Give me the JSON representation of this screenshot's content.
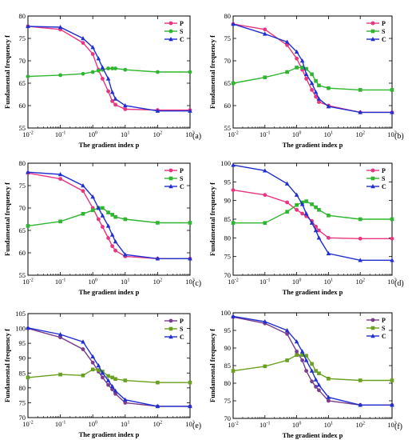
{
  "x_axis_label": "The gradient index p",
  "y_axis_label": "Fundamental frequency f",
  "chart_data": [
    {
      "type": "line",
      "panel_label": "(a)",
      "xscale": "log",
      "xlim": [
        0.01,
        1000
      ],
      "ylim": [
        55,
        80
      ],
      "yticks": [
        55,
        60,
        65,
        70,
        75,
        80
      ],
      "xlabel": "The gradient index p",
      "ylabel": "Fundamental frequency f",
      "legend_position": "top-right",
      "series": [
        {
          "name": "P",
          "color": "#e8357f",
          "marker": "circle",
          "x": [
            0.01,
            0.1,
            0.5,
            1,
            1.5,
            2,
            3,
            4,
            5,
            10,
            100,
            1000
          ],
          "y": [
            77.7,
            77.0,
            74.0,
            71.5,
            68.0,
            66.0,
            63.2,
            61.0,
            60.2,
            59.2,
            59.0,
            59.0
          ]
        },
        {
          "name": "S",
          "color": "#2fb52f",
          "marker": "circle",
          "x": [
            0.01,
            0.1,
            0.5,
            1,
            1.5,
            2,
            3,
            4,
            5,
            10,
            100,
            1000
          ],
          "y": [
            66.5,
            66.8,
            67.1,
            67.5,
            67.8,
            68.0,
            68.3,
            68.3,
            68.3,
            68.0,
            67.5,
            67.5
          ]
        },
        {
          "name": "C",
          "color": "#1f2fd0",
          "marker": "triangle",
          "x": [
            0.01,
            0.1,
            0.5,
            1,
            1.5,
            2,
            3,
            4,
            5,
            10,
            100,
            1000
          ],
          "y": [
            77.7,
            77.5,
            75.0,
            73.0,
            70.5,
            68.5,
            66.0,
            63.0,
            61.5,
            60.0,
            58.8,
            58.8
          ]
        }
      ]
    },
    {
      "type": "line",
      "panel_label": "(b)",
      "xscale": "log",
      "xlim": [
        0.01,
        1000
      ],
      "ylim": [
        55,
        80
      ],
      "yticks": [
        55,
        60,
        65,
        70,
        75,
        80
      ],
      "xlabel": "The gradient index p",
      "ylabel": "Fundamental frequency f",
      "legend_position": "top-right",
      "series": [
        {
          "name": "P",
          "color": "#e8357f",
          "marker": "circle",
          "x": [
            0.01,
            0.1,
            0.5,
            1,
            1.5,
            2,
            3,
            4,
            5,
            10,
            100,
            1000
          ],
          "y": [
            78.2,
            77.0,
            73.5,
            70.5,
            68.0,
            66.0,
            63.5,
            62.0,
            60.8,
            60.0,
            58.5,
            58.5
          ]
        },
        {
          "name": "S",
          "color": "#2fb52f",
          "marker": "square",
          "x": [
            0.01,
            0.1,
            0.5,
            1,
            1.5,
            2,
            3,
            4,
            5,
            10,
            100,
            1000
          ],
          "y": [
            65.0,
            66.3,
            67.5,
            68.5,
            68.5,
            68.2,
            67.0,
            65.5,
            64.5,
            63.9,
            63.5,
            63.5
          ]
        },
        {
          "name": "C",
          "color": "#1f2fd0",
          "marker": "triangle",
          "x": [
            0.01,
            0.1,
            0.5,
            1,
            1.5,
            2,
            3,
            4,
            5,
            10,
            100,
            1000
          ],
          "y": [
            78.2,
            76.0,
            74.2,
            72.0,
            70.0,
            67.0,
            65.0,
            63.0,
            61.5,
            59.8,
            58.5,
            58.5
          ]
        }
      ]
    },
    {
      "type": "line",
      "panel_label": "(c)",
      "xscale": "log",
      "xlim": [
        0.01,
        1000
      ],
      "ylim": [
        55,
        80
      ],
      "yticks": [
        55,
        60,
        65,
        70,
        75,
        80
      ],
      "xlabel": "The gradient index p",
      "ylabel": "Fundamental frequency f",
      "legend_position": "top-right",
      "series": [
        {
          "name": "P",
          "color": "#e8357f",
          "marker": "circle",
          "x": [
            0.01,
            0.1,
            0.5,
            1,
            1.5,
            2,
            3,
            4,
            5,
            10,
            100,
            1000
          ],
          "y": [
            77.8,
            76.5,
            73.8,
            70.0,
            67.5,
            65.8,
            63.3,
            61.5,
            60.5,
            59.2,
            58.7,
            58.7
          ]
        },
        {
          "name": "S",
          "color": "#2fb52f",
          "marker": "square",
          "x": [
            0.01,
            0.1,
            0.5,
            1,
            1.5,
            2,
            3,
            4,
            5,
            10,
            100,
            1000
          ],
          "y": [
            66.0,
            67.0,
            68.7,
            69.5,
            70.0,
            70.0,
            69.0,
            68.5,
            68.0,
            67.5,
            66.7,
            66.7
          ]
        },
        {
          "name": "C",
          "color": "#1f2fd0",
          "marker": "triangle",
          "x": [
            0.01,
            0.1,
            0.5,
            1,
            1.5,
            2,
            3,
            4,
            5,
            10,
            100,
            1000
          ],
          "y": [
            78.0,
            77.5,
            75.0,
            72.5,
            70.0,
            68.3,
            66.0,
            64.0,
            62.5,
            59.6,
            58.7,
            58.7
          ]
        }
      ]
    },
    {
      "type": "line",
      "panel_label": "(d)",
      "xscale": "log",
      "xlim": [
        0.01,
        1000
      ],
      "ylim": [
        70,
        100
      ],
      "yticks": [
        70,
        75,
        80,
        85,
        90,
        95,
        100
      ],
      "xlabel": "The gradient index p",
      "ylabel": "Fundamental frequency f",
      "legend_position": "top-right",
      "series": [
        {
          "name": "P",
          "color": "#e8357f",
          "marker": "circle",
          "x": [
            0.01,
            0.1,
            0.5,
            1,
            1.5,
            2,
            3,
            4,
            5,
            10,
            100,
            1000
          ],
          "y": [
            92.8,
            91.5,
            89.5,
            87.5,
            86.5,
            85.8,
            84.5,
            83.0,
            82.0,
            80.0,
            79.8,
            79.8
          ]
        },
        {
          "name": "S",
          "color": "#2fb52f",
          "marker": "square",
          "x": [
            0.01,
            0.1,
            0.5,
            1,
            1.5,
            2,
            3,
            4,
            5,
            10,
            100,
            1000
          ],
          "y": [
            84.0,
            84.0,
            87.0,
            88.8,
            89.5,
            89.8,
            89.0,
            88.2,
            87.5,
            86.0,
            85.0,
            85.0
          ]
        },
        {
          "name": "C",
          "color": "#1f2fd0",
          "marker": "triangle",
          "x": [
            0.01,
            0.1,
            0.5,
            1,
            1.5,
            2,
            3,
            4,
            5,
            10,
            100,
            1000
          ],
          "y": [
            99.5,
            98.0,
            94.5,
            91.5,
            89.0,
            86.5,
            84.0,
            82.0,
            80.0,
            75.8,
            74.0,
            74.0
          ]
        }
      ]
    },
    {
      "type": "line",
      "panel_label": "(e)",
      "xscale": "log",
      "xlim": [
        0.01,
        1000
      ],
      "ylim": [
        70,
        105
      ],
      "yticks": [
        70,
        75,
        80,
        85,
        90,
        95,
        100,
        105
      ],
      "xlabel": "The gradient index p",
      "ylabel": "Fundamental frequency f",
      "legend_position": "top-right",
      "series": [
        {
          "name": "P",
          "color": "#7b3c8e",
          "marker": "circle",
          "x": [
            0.01,
            0.1,
            0.5,
            1,
            1.5,
            2,
            3,
            4,
            5,
            10,
            100,
            1000
          ],
          "y": [
            100.0,
            97.0,
            93.0,
            88.5,
            85.5,
            83.5,
            81.0,
            79.5,
            78.0,
            75.0,
            73.8,
            73.8
          ]
        },
        {
          "name": "S",
          "color": "#6aa021",
          "marker": "square",
          "x": [
            0.01,
            0.1,
            0.5,
            1,
            1.5,
            2,
            3,
            4,
            5,
            10,
            100,
            1000
          ],
          "y": [
            83.5,
            84.5,
            84.2,
            86.2,
            86.0,
            85.5,
            84.0,
            83.5,
            83.0,
            82.5,
            81.8,
            81.8
          ]
        },
        {
          "name": "C",
          "color": "#1f2fd0",
          "marker": "triangle",
          "x": [
            0.01,
            0.1,
            0.5,
            1,
            1.5,
            2,
            3,
            4,
            5,
            10,
            100,
            1000
          ],
          "y": [
            100.2,
            98.0,
            95.5,
            90.5,
            87.5,
            85.0,
            82.5,
            80.5,
            79.0,
            76.0,
            73.8,
            73.8
          ]
        }
      ]
    },
    {
      "type": "line",
      "panel_label": "(f)",
      "xscale": "log",
      "xlim": [
        0.01,
        1000
      ],
      "ylim": [
        70,
        100
      ],
      "yticks": [
        70,
        75,
        80,
        85,
        90,
        95,
        100
      ],
      "xlabel": "The gradient index p",
      "ylabel": "Fundamental frequency f",
      "legend_position": "top-right",
      "series": [
        {
          "name": "P",
          "color": "#7b3c8e",
          "marker": "circle",
          "x": [
            0.01,
            0.1,
            0.5,
            1,
            1.5,
            2,
            3,
            4,
            5,
            10,
            100,
            1000
          ],
          "y": [
            98.8,
            97.0,
            94.0,
            89.0,
            86.5,
            83.5,
            80.5,
            79.0,
            78.0,
            75.0,
            73.8,
            73.8
          ]
        },
        {
          "name": "S",
          "color": "#6aa021",
          "marker": "square",
          "x": [
            0.01,
            0.1,
            0.5,
            1,
            1.5,
            2,
            3,
            4,
            5,
            10,
            100,
            1000
          ],
          "y": [
            83.5,
            84.8,
            86.5,
            88.0,
            88.0,
            87.8,
            85.5,
            83.5,
            82.8,
            81.3,
            80.8,
            80.8
          ]
        },
        {
          "name": "C",
          "color": "#1f2fd0",
          "marker": "triangle",
          "x": [
            0.01,
            0.1,
            0.5,
            1,
            1.5,
            2,
            3,
            4,
            5,
            10,
            100,
            1000
          ],
          "y": [
            99.0,
            97.5,
            95.0,
            91.8,
            89.0,
            86.5,
            83.5,
            81.0,
            79.5,
            76.0,
            73.8,
            73.8
          ]
        }
      ]
    }
  ]
}
